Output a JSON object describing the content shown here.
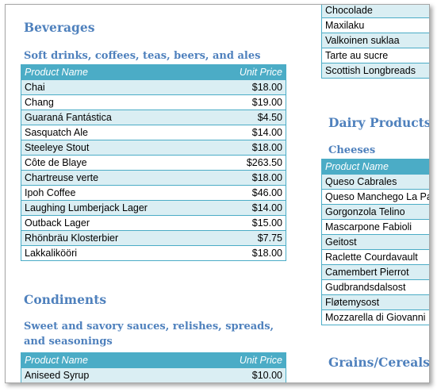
{
  "beverages": {
    "title": "Beverages",
    "subtitle": "Soft drinks, coffees, teas, beers, and ales",
    "header": {
      "name": "Product Name",
      "price": "Unit Price"
    },
    "rows": [
      {
        "name": "Chai",
        "price": "$18.00"
      },
      {
        "name": "Chang",
        "price": "$19.00"
      },
      {
        "name": "Guaraná Fantástica",
        "price": "$4.50"
      },
      {
        "name": "Sasquatch Ale",
        "price": "$14.00"
      },
      {
        "name": "Steeleye Stout",
        "price": "$18.00"
      },
      {
        "name": "Côte de Blaye",
        "price": "$263.50"
      },
      {
        "name": "Chartreuse verte",
        "price": "$18.00"
      },
      {
        "name": "Ipoh Coffee",
        "price": "$46.00"
      },
      {
        "name": "Laughing Lumberjack Lager",
        "price": "$14.00"
      },
      {
        "name": "Outback Lager",
        "price": "$15.00"
      },
      {
        "name": "Rhönbräu Klosterbier",
        "price": "$7.75"
      },
      {
        "name": "Lakkalikööri",
        "price": "$18.00"
      }
    ]
  },
  "condiments": {
    "title": "Condiments",
    "subtitle": "Sweet and savory sauces, relishes, spreads, and seasonings",
    "header": {
      "name": "Product Name",
      "price": "Unit Price"
    },
    "rows": [
      {
        "name": "Aniseed Syrup",
        "price": "$10.00"
      }
    ]
  },
  "confections_tail": {
    "rows": [
      {
        "name": "Chocolade"
      },
      {
        "name": "Maxilaku"
      },
      {
        "name": "Valkoinen suklaa"
      },
      {
        "name": "Tarte au sucre"
      },
      {
        "name": "Scottish Longbreads"
      }
    ]
  },
  "dairy": {
    "title": "Dairy Products",
    "subtitle": "Cheeses",
    "header": {
      "name": "Product Name"
    },
    "rows": [
      {
        "name": "Queso Cabrales"
      },
      {
        "name": "Queso Manchego La Pastora"
      },
      {
        "name": "Gorgonzola Telino"
      },
      {
        "name": "Mascarpone Fabioli"
      },
      {
        "name": "Geitost"
      },
      {
        "name": "Raclette Courdavault"
      },
      {
        "name": "Camembert Pierrot"
      },
      {
        "name": "Gudbrandsdalsost"
      },
      {
        "name": "Fløtemysost"
      },
      {
        "name": "Mozzarella di Giovanni"
      }
    ]
  },
  "grains": {
    "title": "Grains/Cereals"
  }
}
